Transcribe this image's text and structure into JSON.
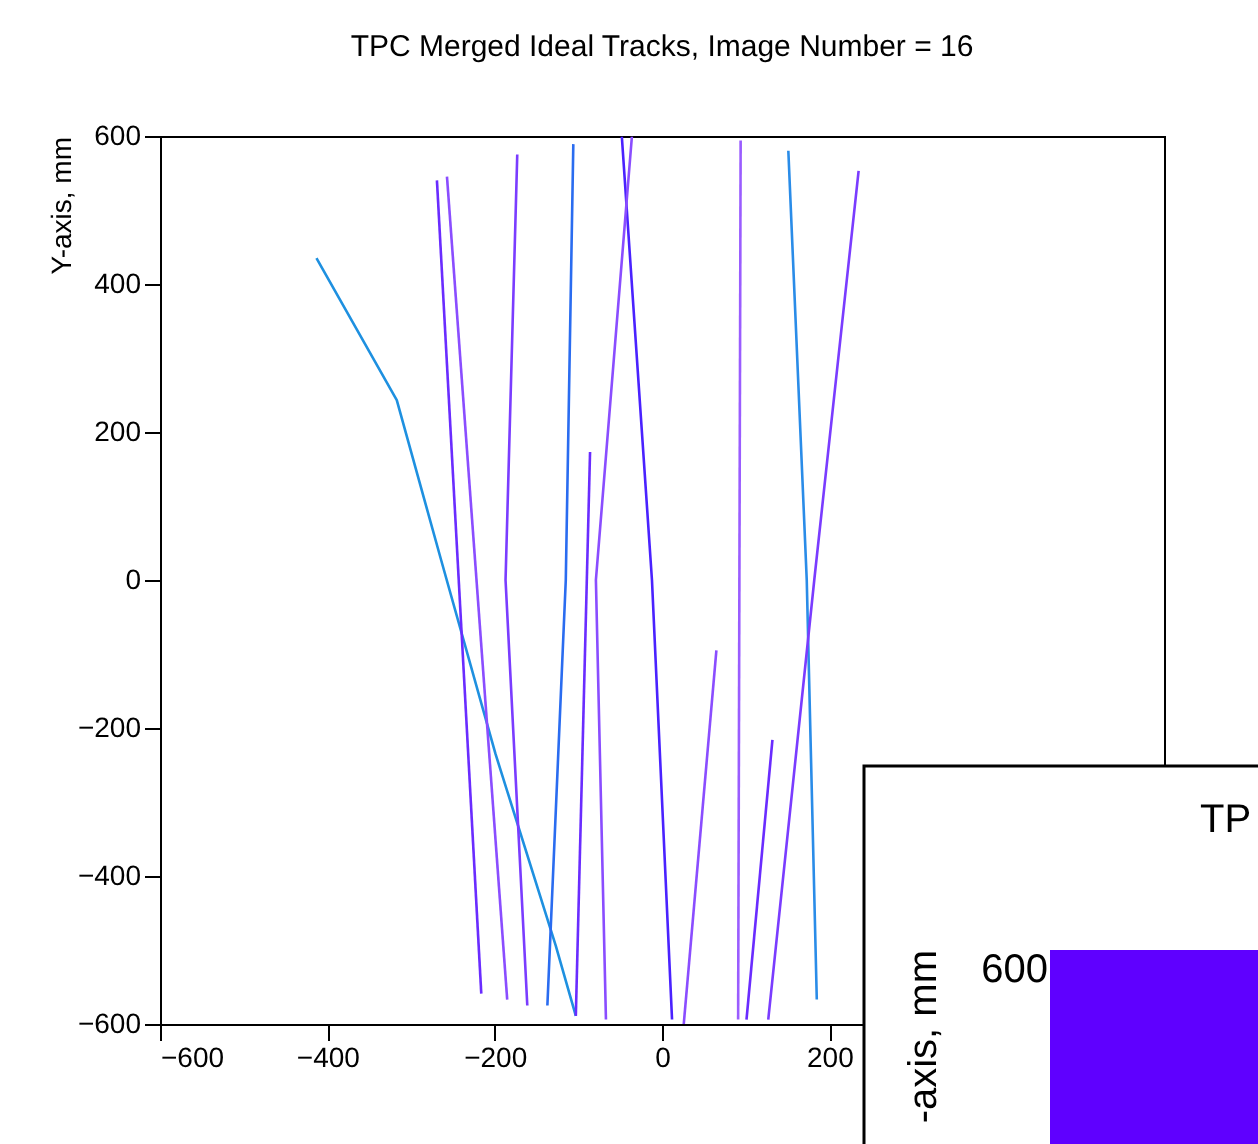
{
  "chart_data": [
    {
      "type": "line",
      "title": "TPC Merged Ideal Tracks, Image Number = 16",
      "ylabel": "Y-axis, mm",
      "xlim": [
        -600,
        600
      ],
      "ylim": [
        -600,
        600
      ],
      "xticks": [
        -600,
        -400,
        -200,
        0,
        200
      ],
      "yticks": [
        -600,
        -400,
        -200,
        0,
        200,
        400,
        600
      ],
      "grid": false,
      "legend": false,
      "marker": "none",
      "line_style": "solid",
      "series": [
        {
          "color": "#1e90e0",
          "x": [
            -413,
            -317,
            -264,
            -199,
            -127,
            -103
          ],
          "values": [
            435,
            243,
            27,
            -235,
            -494,
            -589
          ]
        },
        {
          "color": "#6a2cff",
          "x": [
            -269,
            -216
          ],
          "values": [
            540,
            -559
          ]
        },
        {
          "color": "#8a4dff",
          "x": [
            -257,
            -185
          ],
          "values": [
            545,
            -567
          ]
        },
        {
          "color": "#7a3cff",
          "x": [
            -173,
            -187,
            -161
          ],
          "values": [
            575,
            0,
            -575
          ]
        },
        {
          "color": "#2a6cf0",
          "x": [
            -106,
            -115,
            -137
          ],
          "values": [
            589,
            0,
            -575
          ]
        },
        {
          "color": "#4a22ff",
          "x": [
            -48,
            -12,
            12
          ],
          "values": [
            599,
            0,
            -594
          ]
        },
        {
          "color": "#8a4dff",
          "x": [
            -36,
            -79,
            -67
          ],
          "values": [
            599,
            0,
            -594
          ]
        },
        {
          "color": "#6a2cff",
          "x": [
            -86,
            -103
          ],
          "values": [
            173,
            -589
          ]
        },
        {
          "color": "#9a5cff",
          "x": [
            94,
            91
          ],
          "values": [
            594,
            -594
          ]
        },
        {
          "color": "#2a8ce8",
          "x": [
            151,
            173,
            185
          ],
          "values": [
            580,
            0,
            -567
          ]
        },
        {
          "color": "#7a3cff",
          "x": [
            235,
            182,
            127
          ],
          "values": [
            553,
            0,
            -594
          ]
        },
        {
          "color": "#8a4dff",
          "x": [
            65,
            26
          ],
          "values": [
            -95,
            -600
          ]
        },
        {
          "color": "#6a2cff",
          "x": [
            132,
            101
          ],
          "values": [
            -216,
            -594
          ]
        }
      ]
    },
    {
      "type": "other",
      "title": "TP",
      "ylabel": "-axis, mm",
      "annotations": [
        "600"
      ]
    }
  ]
}
